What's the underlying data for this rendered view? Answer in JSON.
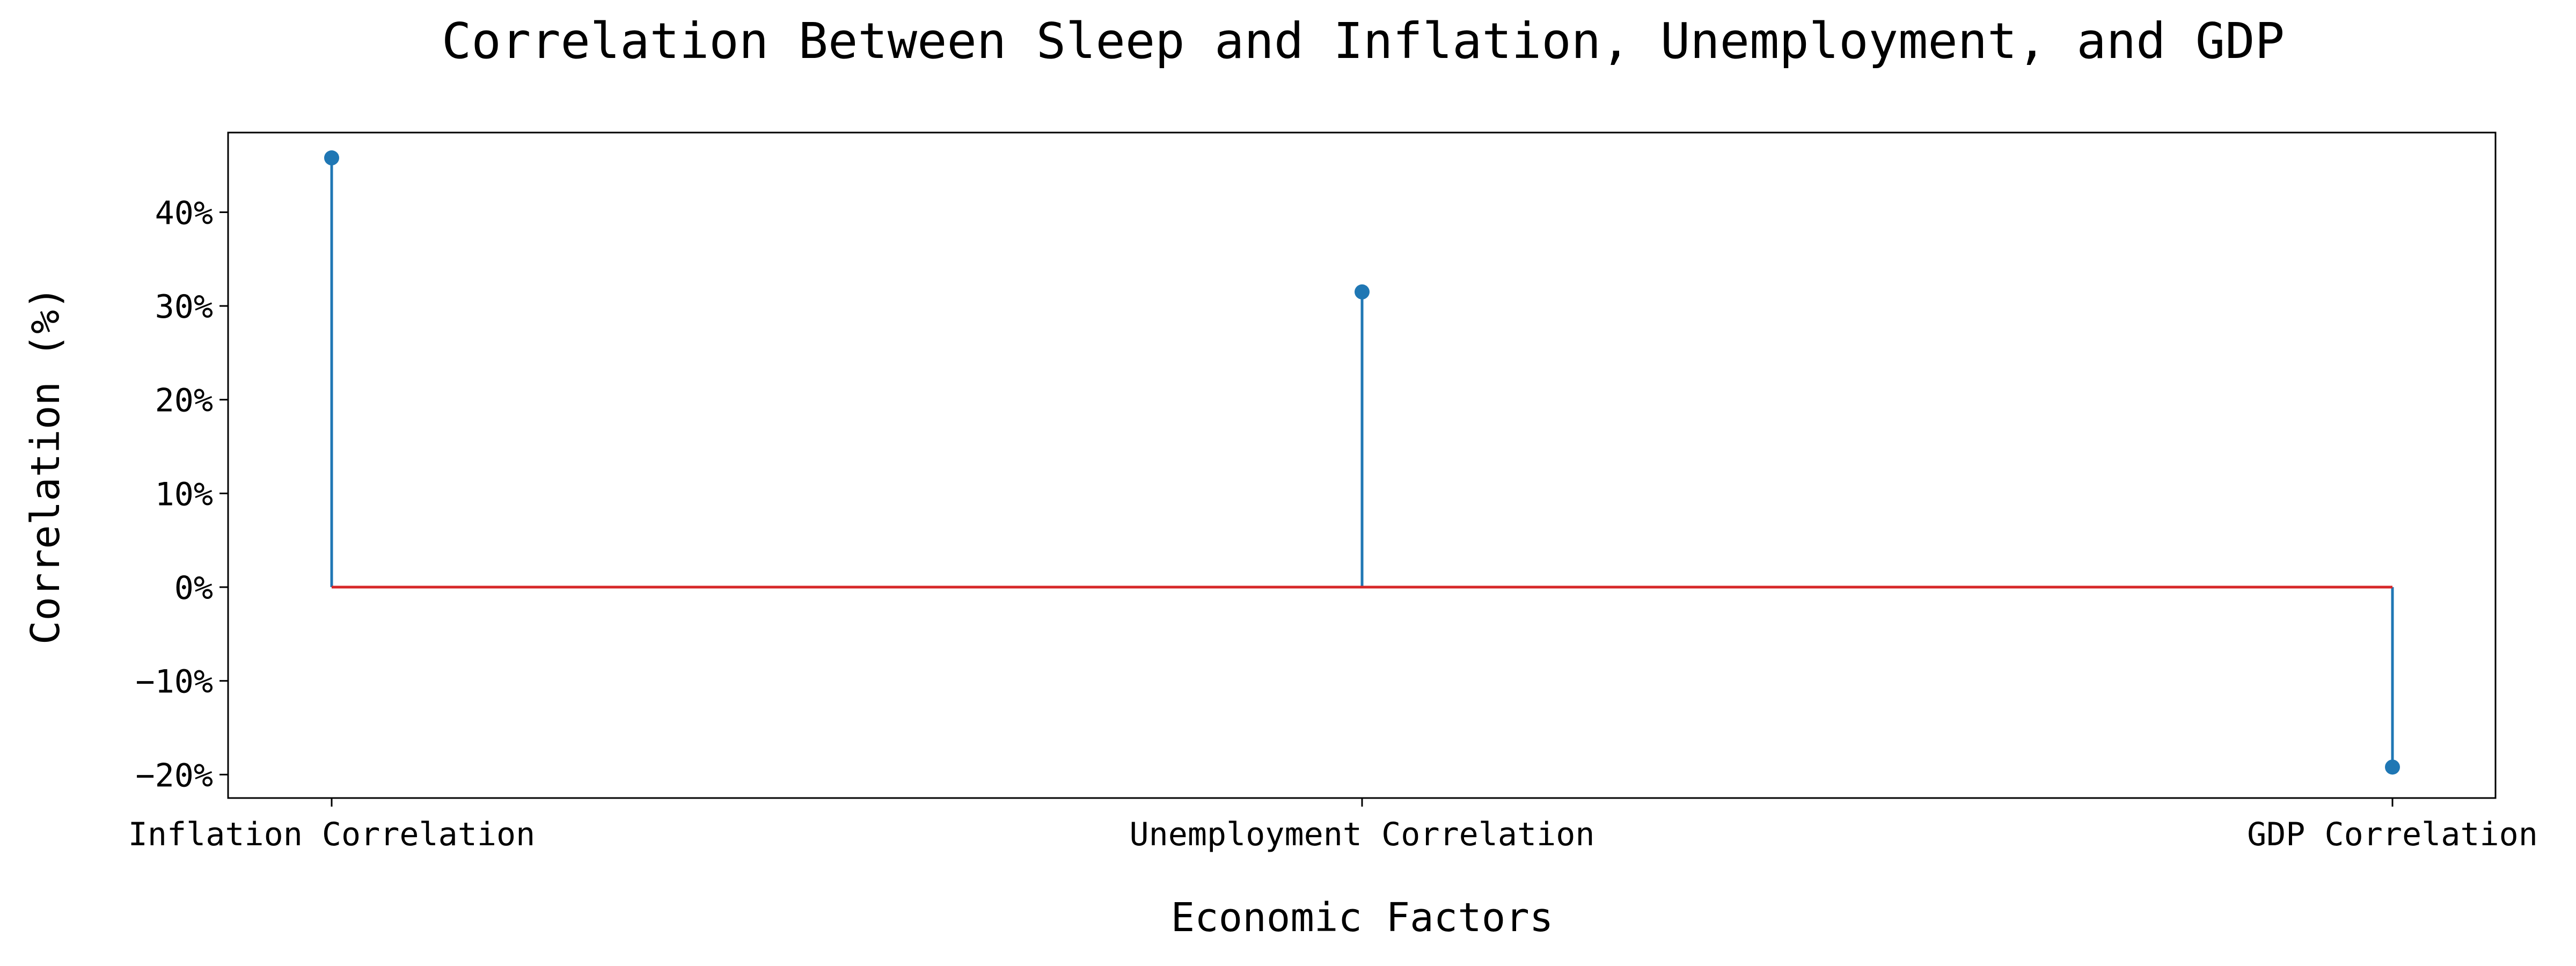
{
  "chart_data": {
    "type": "stem",
    "title": "Correlation Between Sleep and Inflation, Unemployment, and GDP",
    "xlabel": "Economic Factors",
    "ylabel": "Correlation (%)",
    "categories": [
      "Inflation Correlation",
      "Unemployment Correlation",
      "GDP Correlation"
    ],
    "values": [
      45.8,
      31.5,
      -19.2
    ],
    "ylim": [
      -22.5,
      48.5
    ],
    "yticks": [
      -20,
      -10,
      0,
      10,
      20,
      30,
      40
    ],
    "ytick_labels": [
      "−20%",
      "−10%",
      "0%",
      "10%",
      "20%",
      "30%",
      "40%"
    ],
    "baseline": 0,
    "grid": false,
    "legend": "none",
    "colors": {
      "stem": "#1f77b4",
      "marker": "#1f77b4",
      "baseline": "#d62728"
    }
  }
}
